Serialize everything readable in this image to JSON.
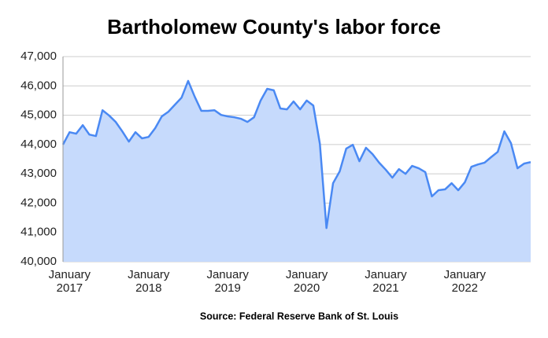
{
  "chart_data": {
    "type": "area",
    "title": "Bartholomew County's labor force",
    "source": "Source: Federal Reserve Bank of St. Louis",
    "categories": [
      null,
      "January 2017",
      null,
      null,
      null,
      null,
      null,
      null,
      null,
      null,
      null,
      null,
      null,
      "January 2018",
      null,
      null,
      null,
      null,
      null,
      null,
      null,
      null,
      null,
      null,
      null,
      "January 2019",
      null,
      null,
      null,
      null,
      null,
      null,
      null,
      null,
      null,
      null,
      null,
      "January 2020",
      null,
      null,
      null,
      null,
      null,
      null,
      null,
      null,
      null,
      null,
      null,
      "January 2021",
      null,
      null,
      null,
      null,
      null,
      null,
      null,
      null,
      null,
      null,
      null,
      "January 2022",
      null,
      null,
      null,
      null,
      null,
      null,
      null,
      null,
      null,
      null
    ],
    "values": [
      44000,
      44420,
      44370,
      44660,
      44340,
      44290,
      45170,
      44990,
      44770,
      44450,
      44100,
      44420,
      44210,
      44260,
      44560,
      44960,
      45120,
      45360,
      45600,
      46170,
      45630,
      45150,
      45150,
      45170,
      45010,
      44960,
      44930,
      44880,
      44770,
      44930,
      45500,
      45900,
      45850,
      45230,
      45200,
      45470,
      45200,
      45500,
      45330,
      44020,
      41150,
      42680,
      43080,
      43860,
      43990,
      43430,
      43890,
      43670,
      43380,
      43140,
      42870,
      43160,
      43000,
      43270,
      43190,
      43060,
      42230,
      42440,
      42470,
      42680,
      42440,
      42710,
      43240,
      43320,
      43380,
      43570,
      43750,
      44450,
      44050,
      43190,
      43350,
      43400
    ],
    "color": "#4a89f3",
    "fill_color": "#c6dafc",
    "ylim": [
      40000,
      47000
    ],
    "yticks": [
      {
        "value": 40000,
        "label": "40,000"
      },
      {
        "value": 41000,
        "label": "41,000"
      },
      {
        "value": 42000,
        "label": "42,000"
      },
      {
        "value": 43000,
        "label": "43,000"
      },
      {
        "value": 44000,
        "label": "44,000"
      },
      {
        "value": 45000,
        "label": "45,000"
      },
      {
        "value": 46000,
        "label": "46,000"
      },
      {
        "value": 47000,
        "label": "47,000"
      }
    ],
    "grid": true
  }
}
